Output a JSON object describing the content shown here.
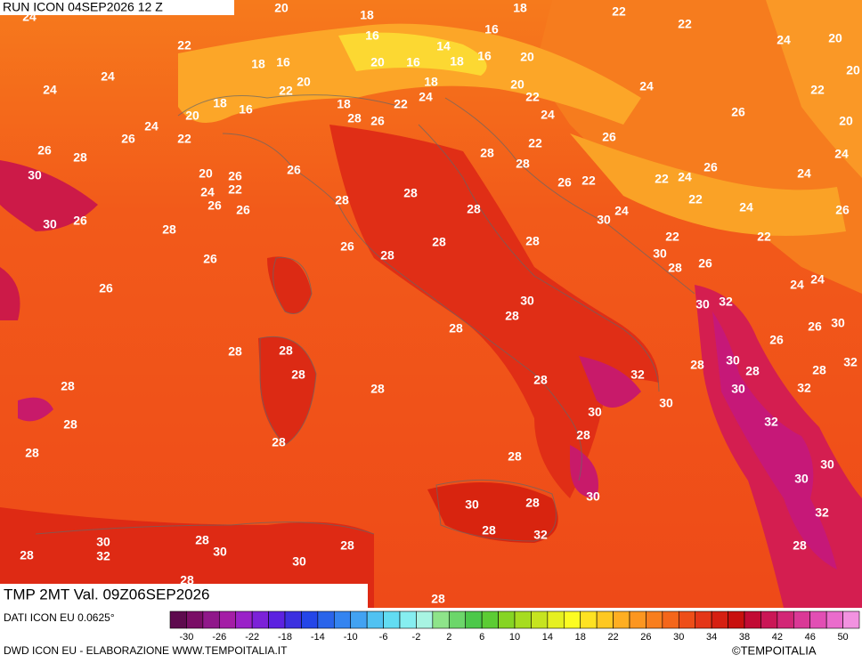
{
  "header": {
    "run": "RUN ICON 04SEP2026 12 Z",
    "validity": "TMP 2MT Val. 09Z06SEP2026"
  },
  "footer": {
    "source": "DATI ICON EU 0.0625°",
    "credit": "DWD ICON EU - ELABORAZIONE WWW.TEMPOITALIA.IT",
    "brand": "©TEMPOITALIA"
  },
  "legend": {
    "ticks": [
      -30,
      -26,
      -22,
      -18,
      -14,
      -10,
      -6,
      -2,
      2,
      6,
      10,
      14,
      18,
      22,
      26,
      30,
      34,
      38,
      42,
      46,
      50
    ],
    "colors": [
      "#5e0a4e",
      "#7a0e66",
      "#90188a",
      "#a41ea6",
      "#9a22c8",
      "#7c22d8",
      "#5c22e0",
      "#3c30e0",
      "#2446e8",
      "#2a64ea",
      "#3484f0",
      "#42a2f2",
      "#50c2f2",
      "#62dcf2",
      "#86eef0",
      "#a8f4e2",
      "#8ee48a",
      "#6cd66a",
      "#4cc84a",
      "#5ccc34",
      "#86d424",
      "#a6dc20",
      "#c6e420",
      "#e6f020",
      "#fcfc22",
      "#fee222",
      "#fec822",
      "#feae22",
      "#fc9620",
      "#f87e1e",
      "#f4661a",
      "#ee4e18",
      "#e43618",
      "#d62012",
      "#c8100e",
      "#c20a34",
      "#ca1656",
      "#d22676",
      "#da3896",
      "#e24eb4",
      "#ea6ccc",
      "#f292e0"
    ]
  },
  "map": {
    "labels": [
      24,
      20,
      18,
      18,
      22,
      22,
      24,
      20,
      20,
      16,
      14,
      16,
      22,
      24,
      24,
      18,
      16,
      20,
      16,
      18,
      16,
      20,
      20,
      22,
      18,
      20,
      22,
      24,
      22,
      18,
      16,
      18,
      22,
      24,
      28,
      26,
      24,
      26,
      20,
      20,
      24,
      22,
      26,
      26,
      22,
      26,
      28,
      28,
      28,
      24,
      26,
      30,
      20,
      26,
      26,
      26,
      22,
      22,
      24,
      24,
      24,
      22,
      28,
      28,
      22,
      26,
      26,
      28,
      30,
      24,
      24,
      26,
      30,
      26,
      28,
      22,
      22,
      26,
      28,
      28,
      26,
      28,
      30,
      28,
      26,
      26,
      24,
      24,
      30,
      30,
      32,
      28,
      30,
      26,
      28,
      26,
      28,
      28,
      28,
      28,
      32,
      28,
      30,
      28,
      28,
      32,
      28,
      28,
      30,
      32,
      30,
      30,
      28,
      32,
      28,
      28,
      28,
      28,
      30,
      30,
      30,
      30,
      28,
      32,
      28,
      32,
      30,
      28,
      32,
      30,
      28,
      28,
      30,
      28,
      28,
      28
    ]
  }
}
